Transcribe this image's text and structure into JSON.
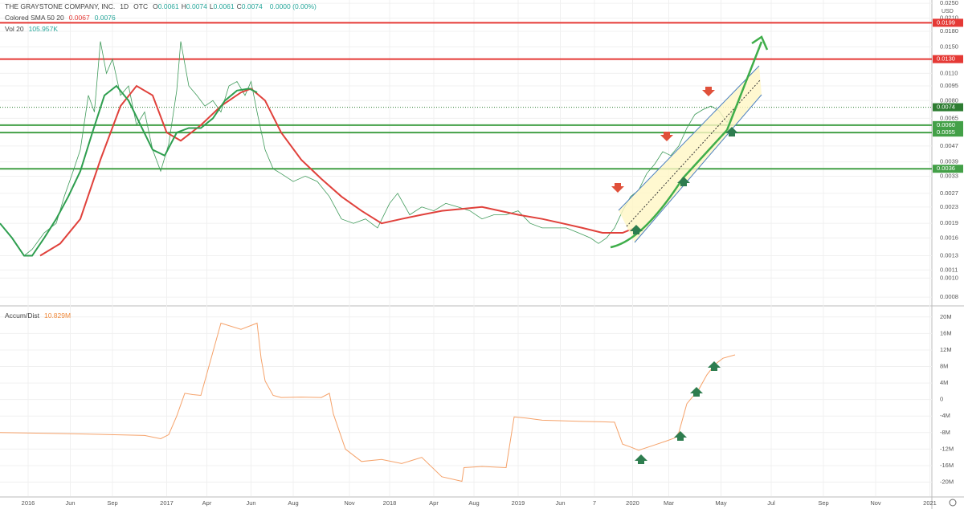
{
  "chart_data": [
    {
      "type": "line",
      "title": "THE GRAYSTONE COMPANY, INC.",
      "interval": "1D",
      "exchange": "OTC",
      "ohlc": [
        {
          "key": "O",
          "value": "0.0061"
        },
        {
          "key": "H",
          "value": "0.0074"
        },
        {
          "key": "L",
          "value": "0.0061"
        },
        {
          "key": "C",
          "value": "0.0074"
        }
      ],
      "change": "0.0000 (0.00%)",
      "indicators": [
        {
          "name": "Colored SMA 50 20",
          "values": [
            "0.0067",
            "0.0076"
          ]
        },
        {
          "name": "Vol 20",
          "values": [
            "105.957K"
          ]
        }
      ],
      "currency": "USD",
      "log_scale": true,
      "grid": true,
      "xlim": [
        0,
        464
      ],
      "xticks": [
        {
          "value": 14,
          "label": "2016"
        },
        {
          "value": 35,
          "label": "Jun"
        },
        {
          "value": 56,
          "label": "Sep"
        },
        {
          "value": 83,
          "label": "2017"
        },
        {
          "value": 103,
          "label": "Apr"
        },
        {
          "value": 125,
          "label": "Jun"
        },
        {
          "value": 146,
          "label": "Aug"
        },
        {
          "value": 174,
          "label": "Nov"
        },
        {
          "value": 194,
          "label": "2018"
        },
        {
          "value": 216,
          "label": "Apr"
        },
        {
          "value": 236,
          "label": "Aug"
        },
        {
          "value": 258,
          "label": "2019"
        },
        {
          "value": 279,
          "label": "Jun"
        },
        {
          "value": 296,
          "label": "7"
        },
        {
          "value": 315,
          "label": "2020"
        },
        {
          "value": 333,
          "label": "Mar"
        },
        {
          "value": 359,
          "label": "May"
        },
        {
          "value": 384,
          "label": "Jul"
        },
        {
          "value": 410,
          "label": "Sep"
        },
        {
          "value": 436,
          "label": "Nov"
        },
        {
          "value": 463,
          "label": "2021"
        }
      ],
      "ylim": [
        0.00075,
        0.0255
      ],
      "yticks": [
        {
          "value": 0.025,
          "label": "0.0250"
        },
        {
          "value": 0.021,
          "label": "0.0210"
        },
        {
          "value": 0.018,
          "label": "0.0180"
        },
        {
          "value": 0.015,
          "label": "0.0150"
        },
        {
          "value": 0.011,
          "label": "0.0110"
        },
        0.0095,
        {
          "value": 0.008,
          "label": "0.0080"
        },
        0.0065,
        0.0047,
        0.0039,
        0.0033,
        0.0027,
        0.0023,
        0.0019,
        0.0016,
        0.0013,
        0.0011,
        {
          "value": 0.001,
          "label": "0.0010"
        },
        0.0008
      ],
      "levels": {
        "values": [
          0.0199,
          0.013,
          0.006,
          0.0055,
          0.0036
        ],
        "value_labels": [
          "0.0199",
          "0.0130",
          "0.0060",
          "0.0055",
          "0.0036"
        ],
        "colors": [
          "#e53935",
          "#e53935",
          "#43a047",
          "#43a047",
          "#43a047"
        ]
      },
      "last_price": {
        "value": 0.0074,
        "label": "0.0074",
        "color": "#2e7d32"
      },
      "series": [
        {
          "color": "#3f9a5a",
          "x": [
            0,
            6,
            12,
            16,
            22,
            28,
            32,
            36,
            40,
            44,
            47,
            50,
            53,
            56,
            60,
            64,
            68,
            72,
            76,
            80,
            84,
            88,
            90,
            94,
            98,
            102,
            106,
            110,
            114,
            118,
            122,
            125,
            128,
            132,
            136,
            140,
            146,
            152,
            158,
            164,
            170,
            176,
            182,
            188,
            194,
            198,
            204,
            210,
            216,
            222,
            228,
            234,
            240,
            246,
            252,
            258,
            264,
            270,
            276,
            282,
            288,
            294,
            298,
            302,
            306,
            310,
            314,
            318,
            322,
            326,
            330,
            334,
            338,
            342,
            346,
            350,
            354,
            358,
            362,
            366
          ],
          "values": [
            0.0019,
            0.0016,
            0.0013,
            0.0014,
            0.0017,
            0.0019,
            0.0026,
            0.0034,
            0.0045,
            0.0085,
            0.007,
            0.016,
            0.011,
            0.013,
            0.0085,
            0.0095,
            0.006,
            0.007,
            0.0045,
            0.0035,
            0.0048,
            0.009,
            0.016,
            0.0095,
            0.0085,
            0.0075,
            0.008,
            0.007,
            0.0095,
            0.01,
            0.0085,
            0.01,
            0.007,
            0.0045,
            0.0036,
            0.0034,
            0.0031,
            0.0033,
            0.0031,
            0.0026,
            0.002,
            0.0019,
            0.002,
            0.0018,
            0.0024,
            0.0027,
            0.0021,
            0.0023,
            0.0022,
            0.0024,
            0.0023,
            0.0022,
            0.002,
            0.0021,
            0.0021,
            0.0022,
            0.0019,
            0.0018,
            0.0018,
            0.0018,
            0.0017,
            0.0016,
            0.0015,
            0.0016,
            0.0018,
            0.0022,
            0.0026,
            0.0028,
            0.0034,
            0.0038,
            0.0044,
            0.0042,
            0.0047,
            0.0058,
            0.0068,
            0.0072,
            0.0075,
            0.0071,
            0.0062,
            0.0074
          ],
          "width": 0.8
        },
        {
          "color": "#e0413b",
          "x": [
            20,
            30,
            40,
            50,
            60,
            68,
            76,
            83,
            90,
            100,
            110,
            120,
            125,
            132,
            140,
            150,
            160,
            170,
            180,
            190,
            200,
            210,
            220,
            240,
            258,
            270,
            280,
            290,
            300,
            310,
            316
          ],
          "values": [
            0.0013,
            0.0015,
            0.002,
            0.004,
            0.0075,
            0.0095,
            0.0085,
            0.0055,
            0.005,
            0.006,
            0.0075,
            0.0088,
            0.0092,
            0.008,
            0.0055,
            0.004,
            0.0032,
            0.0026,
            0.0022,
            0.0019,
            0.002,
            0.0021,
            0.0022,
            0.0023,
            0.0021,
            0.002,
            0.0019,
            0.0018,
            0.0017,
            0.0017,
            0.0018
          ],
          "width": 2
        },
        {
          "color": "#2e9e4f",
          "x": [
            0,
            6,
            12,
            16,
            22,
            28,
            34,
            40,
            46,
            52,
            58,
            64,
            70,
            76,
            82,
            88,
            94,
            100,
            106,
            112,
            118,
            124,
            128
          ],
          "values": [
            0.0019,
            0.0016,
            0.0013,
            0.0013,
            0.0016,
            0.002,
            0.0026,
            0.0035,
            0.0055,
            0.0085,
            0.0095,
            0.008,
            0.006,
            0.0045,
            0.0042,
            0.0055,
            0.0058,
            0.0058,
            0.0065,
            0.008,
            0.009,
            0.0092,
            0.0088
          ],
          "width": 2
        }
      ]
    },
    {
      "type": "line",
      "title": "Accum/Dist",
      "last_value": "10.829M",
      "grid": true,
      "ylim": [
        -23400000,
        22100000
      ],
      "yticks": [
        {
          "value": 20000000,
          "label": "20M"
        },
        {
          "value": 16000000,
          "label": "16M"
        },
        {
          "value": 12000000,
          "label": "12M"
        },
        {
          "value": 8000000,
          "label": "8M"
        },
        {
          "value": 4000000,
          "label": "4M"
        },
        0,
        {
          "value": -4000000,
          "label": "-4M"
        },
        {
          "value": -8000000,
          "label": "-8M"
        },
        {
          "value": -12000000,
          "label": "-12M"
        },
        {
          "value": -16000000,
          "label": "-16M"
        },
        {
          "value": -20000000,
          "label": "-20M"
        }
      ],
      "series": [
        {
          "color": "#f5a26a",
          "x": [
            0,
            36,
            72,
            80,
            84,
            88,
            92,
            96,
            100,
            110,
            120,
            128,
            130,
            132,
            136,
            140,
            150,
            160,
            164,
            166,
            172,
            180,
            190,
            200,
            210,
            220,
            230,
            231,
            240,
            252,
            256,
            262,
            270,
            290,
            300,
            306,
            310,
            314,
            318,
            326,
            332,
            336,
            338,
            342,
            348,
            352,
            356,
            360,
            366
          ],
          "values": [
            -8000000,
            -8300000,
            -8700000,
            -9500000,
            -8500000,
            -4000000,
            1500000,
            1200000,
            1000000,
            18500000,
            17000000,
            18500000,
            10000000,
            4500000,
            1000000,
            500000,
            600000,
            500000,
            1500000,
            -3500000,
            -12000000,
            -15000000,
            -14500000,
            -15500000,
            -14000000,
            -18700000,
            -19800000,
            -16500000,
            -16200000,
            -16500000,
            -4200000,
            -4500000,
            -5000000,
            -5300000,
            -5400000,
            -5500000,
            -10800000,
            -11500000,
            -12300000,
            -11000000,
            -10000000,
            -9300000,
            -8000000,
            -1000000,
            2500000,
            6000000,
            8500000,
            10000000,
            10829000
          ],
          "width": 1
        }
      ]
    }
  ]
}
